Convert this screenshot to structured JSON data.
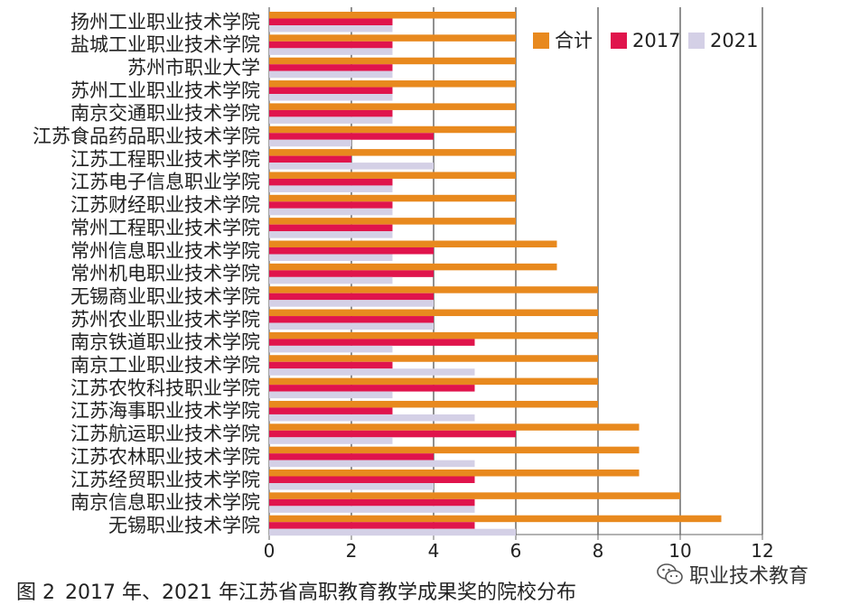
{
  "colors": {
    "total": "#E8891E",
    "y2017": "#E0144C",
    "y2021": "#D4D0E6",
    "grid": "#222222",
    "axis": "#666666"
  },
  "caption": {
    "figure": "图 2",
    "text": "2017 年、2021 年江苏省高职教育教学成果奖的院校分布"
  },
  "watermark": {
    "text": "职业技术教育",
    "icon": "wechat-icon"
  },
  "chart_data": {
    "type": "bar",
    "orientation": "horizontal",
    "categories": [
      "扬州工业职业技术学院",
      "盐城工业职业技术学院",
      "苏州市职业大学",
      "苏州工业职业技术学院",
      "南京交通职业技术学院",
      "江苏食品药品职业技术学院",
      "江苏工程职业技术学院",
      "江苏电子信息职业学院",
      "江苏财经职业技术学院",
      "常州工程职业技术学院",
      "常州信息职业技术学院",
      "常州机电职业技术学院",
      "无锡商业职业技术学院",
      "苏州农业职业技术学院",
      "南京铁道职业技术学院",
      "南京工业职业技术学院",
      "江苏农牧科技职业学院",
      "江苏海事职业技术学院",
      "江苏航运职业技术学院",
      "江苏农林职业技术学院",
      "江苏经贸职业技术学院",
      "南京信息职业技术学院",
      "无锡职业技术学院"
    ],
    "series": [
      {
        "name": "合计",
        "values": [
          6,
          6,
          6,
          6,
          6,
          6,
          6,
          6,
          6,
          6,
          7,
          7,
          8,
          8,
          8,
          8,
          8,
          8,
          9,
          9,
          9,
          10,
          11
        ]
      },
      {
        "name": "2017",
        "values": [
          3,
          3,
          3,
          3,
          3,
          4,
          2,
          3,
          3,
          3,
          4,
          4,
          4,
          4,
          5,
          3,
          5,
          3,
          6,
          4,
          5,
          5,
          5
        ]
      },
      {
        "name": "2021",
        "values": [
          3,
          3,
          3,
          3,
          3,
          2,
          4,
          3,
          3,
          3,
          3,
          3,
          4,
          4,
          3,
          5,
          3,
          5,
          3,
          5,
          4,
          5,
          6
        ]
      }
    ],
    "xlim": [
      0,
      12
    ],
    "xticks": [
      "0",
      "2",
      "4",
      "6",
      "8",
      "10",
      "12"
    ],
    "grid": "vertical",
    "legend": "top-right"
  }
}
